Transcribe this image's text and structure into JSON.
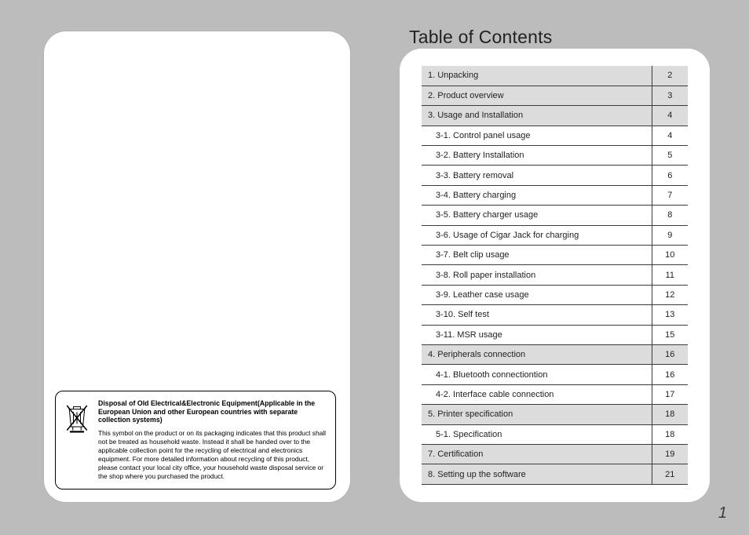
{
  "colors": {
    "page_bg": "#bcbcbc",
    "card_bg": "#ffffff",
    "section_bg": "#dcdcdc",
    "rule": "#3b3b3b",
    "text": "#222222"
  },
  "leftPage": {
    "disposal": {
      "heading": "Disposal of Old Electrical&Electronic Equipment(Applicable in the European Union and other European countries with separate collection systems)",
      "body": "This symbol on the product or on its packaging indicates that this product shall not be treated as household waste.\nInstead it shall be handed over to the applicable collection point for the recycling of electrical and electronics equipment. For more detailed information about recycling of this product, please contact your local city office, your household waste disposal service or the shop where you purchased the product.",
      "icon_name": "weee-crossed-bin-icon"
    }
  },
  "rightPage": {
    "title": "Table of Contents",
    "pageNumber": "1",
    "toc": [
      {
        "level": "section",
        "label": "1.  Unpacking",
        "page": "2"
      },
      {
        "level": "section",
        "label": "2.  Product overview",
        "page": "3"
      },
      {
        "level": "section",
        "label": "3.  Usage and Installation",
        "page": "4"
      },
      {
        "level": "sub",
        "label": "3-1.  Control panel usage",
        "page": "4"
      },
      {
        "level": "sub",
        "label": "3-2.  Battery Installation",
        "page": "5"
      },
      {
        "level": "sub",
        "label": "3-3.  Battery removal",
        "page": "6"
      },
      {
        "level": "sub",
        "label": "3-4.  Battery charging",
        "page": "7"
      },
      {
        "level": "sub",
        "label": "3-5.  Battery charger usage",
        "page": "8"
      },
      {
        "level": "sub",
        "label": "3-6.  Usage of Cigar Jack for charging",
        "page": "9"
      },
      {
        "level": "sub",
        "label": "3-7.  Belt clip usage",
        "page": "10"
      },
      {
        "level": "sub",
        "label": "3-8.  Roll paper installation",
        "page": "11"
      },
      {
        "level": "sub",
        "label": "3-9.  Leather case usage",
        "page": "12"
      },
      {
        "level": "sub",
        "label": "3-10. Self test",
        "page": "13"
      },
      {
        "level": "sub",
        "label": "3-11. MSR usage",
        "page": "15"
      },
      {
        "level": "section",
        "label": "4.  Peripherals connection",
        "page": "16"
      },
      {
        "level": "sub",
        "label": "4-1.  Bluetooth connectiontion",
        "page": "16"
      },
      {
        "level": "sub",
        "label": "4-2.  Interface cable connection",
        "page": "17"
      },
      {
        "level": "section",
        "label": "5.  Printer specification",
        "page": "18"
      },
      {
        "level": "sub",
        "label": "5-1.  Specification",
        "page": "18"
      },
      {
        "level": "section",
        "label": "7.  Certification",
        "page": "19"
      },
      {
        "level": "section",
        "label": "8.  Setting up the software",
        "page": "21"
      }
    ]
  }
}
